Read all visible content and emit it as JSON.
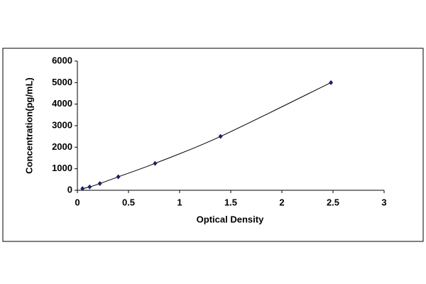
{
  "chart_data": {
    "type": "line",
    "x_label": "Optical Density",
    "y_label": "Concentration(pg/mL)",
    "series": [
      {
        "color": "#1f1f6b",
        "x": [
          0.05,
          0.12,
          0.22,
          0.4,
          0.76,
          1.4,
          2.48
        ],
        "values": [
          78,
          156,
          312,
          625,
          1250,
          2500,
          5000
        ]
      }
    ],
    "xlim": [
      0,
      3
    ],
    "xticks": [
      0,
      0.5,
      1,
      1.5,
      2,
      2.5,
      3
    ],
    "ylim": [
      0,
      6000
    ],
    "yticks": [
      0,
      1000,
      2000,
      3000,
      4000,
      5000,
      6000
    ],
    "grid": false
  }
}
